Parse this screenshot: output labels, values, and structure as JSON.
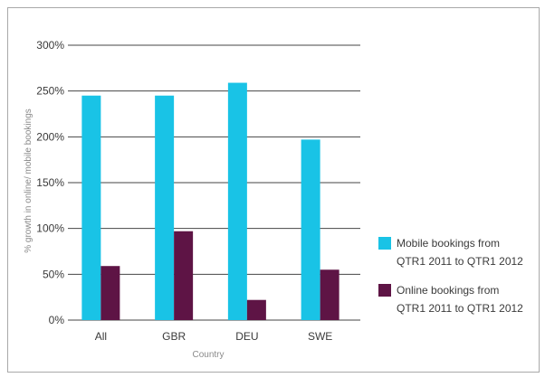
{
  "chart_data": {
    "type": "bar",
    "categories": [
      "All",
      "GBR",
      "DEU",
      "SWE"
    ],
    "series": [
      {
        "name": "Mobile bookings from QTR1 2011 to QTR1 2012",
        "legend_lines": [
          "Mobile bookings from",
          "QTR1 2011 to QTR1 2012"
        ],
        "color": "#19c3e6",
        "values": [
          245,
          245,
          259,
          197
        ]
      },
      {
        "name": "Online bookings from QTR1 2011 to QTR1 2012",
        "legend_lines": [
          "Online bookings from",
          "QTR1 2011 to QTR1 2012"
        ],
        "color": "#5e1445",
        "values": [
          59,
          97,
          22,
          55
        ]
      }
    ],
    "title": "",
    "xlabel": "Country",
    "ylabel": "% growth in online/ mobile bookings",
    "ylim": [
      0,
      300
    ],
    "yticks": [
      {
        "value": 0,
        "label": "0%"
      },
      {
        "value": 50,
        "label": "50%"
      },
      {
        "value": 100,
        "label": "100%"
      },
      {
        "value": 150,
        "label": "150%"
      },
      {
        "value": 200,
        "label": "200%"
      },
      {
        "value": 250,
        "label": "250%"
      },
      {
        "value": 300,
        "label": "300%"
      }
    ],
    "grid": true,
    "legend_position": "right",
    "grid_color": "#444444"
  }
}
